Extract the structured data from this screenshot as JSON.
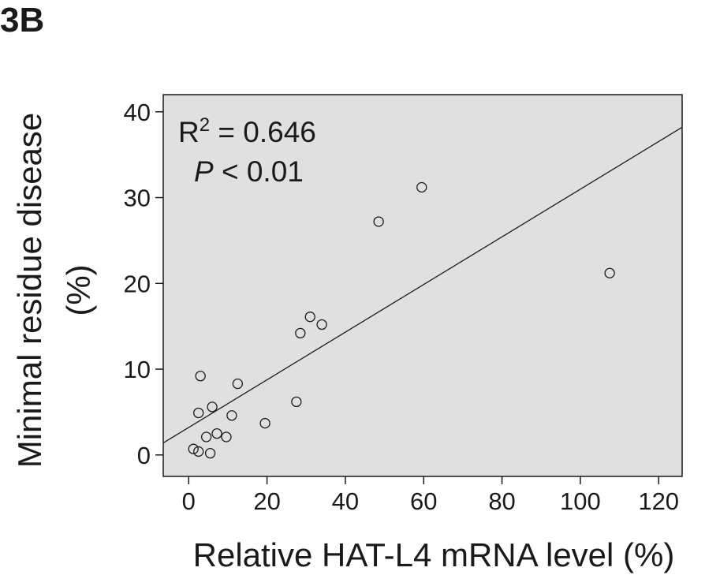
{
  "panel_label": "3B",
  "chart_data": {
    "type": "scatter",
    "title": "",
    "xlabel": "Relative HAT-L4 mRNA level (%)",
    "ylabel_line1": "Minimal residue disease",
    "ylabel_line2": "(%)",
    "xlim": [
      -6.5,
      126
    ],
    "ylim": [
      -2.5,
      42
    ],
    "x_ticks": [
      0,
      20,
      40,
      60,
      80,
      100,
      120
    ],
    "y_ticks": [
      0,
      10,
      20,
      30,
      40
    ],
    "x_tick_labels": [
      "0",
      "20",
      "40",
      "60",
      "80",
      "100",
      "120"
    ],
    "y_tick_labels": [
      "0",
      "10",
      "20",
      "30",
      "40"
    ],
    "grid": false,
    "background": "#e0e0e0",
    "annotations": {
      "r2_prefix": "R",
      "r2_sup": "2",
      "r2_value": " = 0.646",
      "p_symbol": "P",
      "p_value": " < 0.01"
    },
    "fit_line": {
      "x": [
        -6.5,
        126
      ],
      "y": [
        1.4,
        38.2
      ]
    },
    "points": [
      {
        "x": 1.2,
        "y": 0.7
      },
      {
        "x": 2.5,
        "y": 0.4
      },
      {
        "x": 5.5,
        "y": 0.2
      },
      {
        "x": 4.5,
        "y": 2.1
      },
      {
        "x": 7.2,
        "y": 2.5
      },
      {
        "x": 9.6,
        "y": 2.1
      },
      {
        "x": 2.5,
        "y": 4.9
      },
      {
        "x": 6.0,
        "y": 5.6
      },
      {
        "x": 11.0,
        "y": 4.6
      },
      {
        "x": 3.0,
        "y": 9.2
      },
      {
        "x": 12.5,
        "y": 8.3
      },
      {
        "x": 19.5,
        "y": 3.7
      },
      {
        "x": 27.5,
        "y": 6.2
      },
      {
        "x": 28.5,
        "y": 14.2
      },
      {
        "x": 31.0,
        "y": 16.1
      },
      {
        "x": 34.0,
        "y": 15.2
      },
      {
        "x": 48.5,
        "y": 27.2
      },
      {
        "x": 59.5,
        "y": 31.2
      },
      {
        "x": 107.5,
        "y": 21.2
      }
    ]
  }
}
